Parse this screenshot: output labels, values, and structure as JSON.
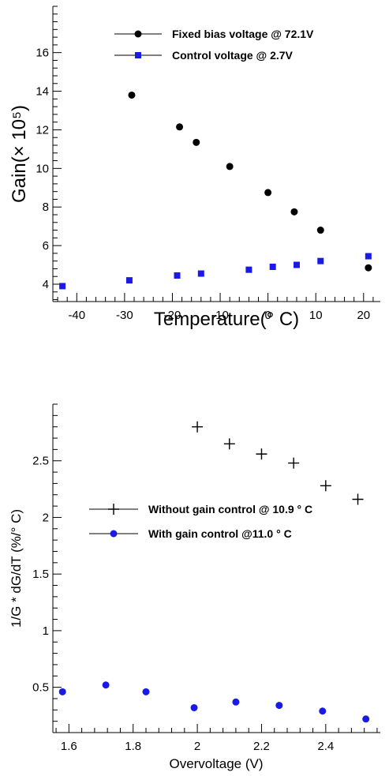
{
  "chart_data": [
    {
      "type": "scatter",
      "xlabel": "Temperature(° C)",
      "ylabel": "Gain(× 10⁵)",
      "xlim": [
        -45,
        23.5
      ],
      "ylim": [
        3.1,
        18.4
      ],
      "xticks": [
        -40,
        -30,
        -20,
        -10,
        0,
        10,
        20
      ],
      "yticks": [
        4,
        6,
        8,
        10,
        12,
        14,
        16
      ],
      "legend_position": "top-right",
      "series": [
        {
          "name": "Fixed bias voltage @ 72.1V",
          "marker": "circle",
          "color": "#000000",
          "x": [
            -28.5,
            -18.5,
            -15,
            -8,
            0,
            5.5,
            11,
            21
          ],
          "y": [
            13.8,
            12.15,
            11.35,
            10.1,
            8.75,
            7.75,
            6.8,
            4.85
          ]
        },
        {
          "name": "Control voltage @ 2.7V",
          "marker": "square",
          "color": "#1a1ae6",
          "x": [
            -43,
            -29,
            -19,
            -14,
            -4,
            1,
            6,
            11,
            21
          ],
          "y": [
            3.9,
            4.2,
            4.45,
            4.55,
            4.75,
            4.9,
            5.0,
            5.2,
            5.45
          ]
        }
      ]
    },
    {
      "type": "scatter",
      "xlabel": "Overvoltage (V)",
      "ylabel": "1/G * dG/dT (%/° C)",
      "xlim": [
        1.55,
        2.57
      ],
      "ylim": [
        0.1,
        3.0
      ],
      "xticks": [
        1.6,
        1.8,
        2,
        2.2,
        2.4
      ],
      "xtick_labels": [
        "1.6",
        "1.8",
        "2",
        "2.2",
        "2.4"
      ],
      "yticks": [
        0.5,
        1,
        1.5,
        2,
        2.5
      ],
      "ytick_labels": [
        "0.5",
        "1",
        "1.5",
        "2",
        "2.5"
      ],
      "legend_position": "middle-right",
      "series": [
        {
          "name": "Without gain control @ 10.9 ° C",
          "marker": "plus",
          "color": "#000000",
          "x": [
            2.0,
            2.1,
            2.2,
            2.3,
            2.4,
            2.5
          ],
          "y": [
            2.8,
            2.65,
            2.56,
            2.48,
            2.28,
            2.16
          ]
        },
        {
          "name": "With gain control @11.0 ° C",
          "marker": "circle",
          "color": "#1a1ae6",
          "x": [
            1.58,
            1.715,
            1.84,
            1.99,
            2.12,
            2.255,
            2.39,
            2.525
          ],
          "y": [
            0.46,
            0.52,
            0.46,
            0.32,
            0.37,
            0.34,
            0.29,
            0.22
          ]
        }
      ]
    }
  ]
}
